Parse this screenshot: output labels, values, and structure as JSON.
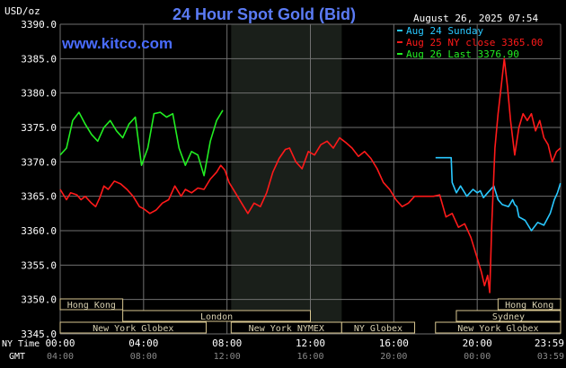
{
  "header": {
    "title": "24 Hour Spot Gold (Bid)",
    "unit": "USD/oz",
    "datetime": "August 26, 2025 07:54",
    "site": "www.kitco.com"
  },
  "colors": {
    "background": "#000000",
    "grid": "#707070",
    "title": "#5b7bf5",
    "sunday": "#29c8ff",
    "ny_close": "#ff1a1a",
    "last": "#22ee22",
    "session_fill": "#000000",
    "session_border": "#d8c690",
    "session_text": "#d8d0b0",
    "nymex_shade": "#1a1f1a"
  },
  "legend": [
    {
      "label": "Aug 24 Sunday",
      "color": "#29c8ff"
    },
    {
      "label": "Aug 25 NY close 3365.00",
      "color": "#ff1a1a"
    },
    {
      "label": "Aug 26 Last 3376.90",
      "color": "#22ee22"
    }
  ],
  "chart_data": {
    "type": "line",
    "title": "24 Hour Spot Gold (Bid)",
    "ylabel": "USD/oz",
    "ylim": [
      3345.0,
      3390.0
    ],
    "y_ticks": [
      "3390.0",
      "3385.0",
      "3380.0",
      "3375.0",
      "3370.0",
      "3365.0",
      "3360.0",
      "3355.0",
      "3350.0",
      "3345.0"
    ],
    "x_range_hours": [
      0,
      24
    ],
    "x_ticks_ny": [
      "00:00",
      "04:00",
      "08:00",
      "12:00",
      "16:00",
      "20:00",
      "23:59"
    ],
    "x_ticks_gmt": [
      "04:00",
      "08:00",
      "12:00",
      "16:00",
      "20:00",
      "00:00",
      "03:59"
    ],
    "x_row_label_ny": "NY Time",
    "x_row_label_gmt": "GMT",
    "grid": true,
    "legend_position": "top-right",
    "series": [
      {
        "name": "Aug 24 Sunday",
        "color": "#29c8ff",
        "x": [
          18.0,
          18.75,
          18.8,
          19.0,
          19.2,
          19.5,
          19.8,
          20.0,
          20.15,
          20.3,
          20.5,
          20.8,
          21.0,
          21.2,
          21.5,
          21.7,
          21.8,
          21.9,
          22.0,
          22.3,
          22.6,
          22.9,
          23.2,
          23.5,
          23.7,
          23.85,
          23.99
        ],
        "y": [
          3370.6,
          3370.6,
          3367.0,
          3365.5,
          3366.5,
          3365.0,
          3366.0,
          3365.5,
          3365.8,
          3364.8,
          3365.5,
          3366.5,
          3364.5,
          3363.8,
          3363.5,
          3364.5,
          3363.8,
          3363.5,
          3362.0,
          3361.5,
          3360.0,
          3361.2,
          3360.8,
          3362.5,
          3364.5,
          3365.5,
          3366.9
        ]
      },
      {
        "name": "Aug 25 NY close 3365.00",
        "color": "#ff1a1a",
        "x": [
          0,
          0.3,
          0.5,
          0.8,
          1.0,
          1.2,
          1.5,
          1.7,
          1.9,
          2.1,
          2.3,
          2.6,
          2.9,
          3.2,
          3.5,
          3.8,
          4.0,
          4.3,
          4.6,
          4.9,
          5.2,
          5.5,
          5.8,
          6.0,
          6.3,
          6.6,
          6.9,
          7.2,
          7.5,
          7.7,
          7.9,
          8.1,
          8.4,
          8.7,
          9.0,
          9.3,
          9.6,
          9.9,
          10.2,
          10.5,
          10.8,
          11.0,
          11.3,
          11.6,
          11.9,
          12.2,
          12.5,
          12.8,
          13.1,
          13.4,
          13.7,
          14.0,
          14.3,
          14.6,
          14.9,
          15.2,
          15.5,
          15.8,
          16.1,
          16.4,
          16.7,
          17.0,
          17.3,
          17.6,
          17.9,
          18.2,
          18.5,
          18.8,
          19.1,
          19.4,
          19.7,
          20.0,
          20.2,
          20.35,
          20.5,
          20.6,
          20.7,
          20.85,
          21.0,
          21.15,
          21.3,
          21.45,
          21.6,
          21.8,
          22.0,
          22.2,
          22.4,
          22.6,
          22.8,
          23.0,
          23.2,
          23.4,
          23.6,
          23.8,
          23.99
        ],
        "y": [
          3366.0,
          3364.5,
          3365.5,
          3365.2,
          3364.5,
          3365.0,
          3364.0,
          3363.5,
          3364.8,
          3366.5,
          3366.0,
          3367.2,
          3366.8,
          3366.0,
          3365.0,
          3363.5,
          3363.2,
          3362.5,
          3363.0,
          3364.0,
          3364.5,
          3366.5,
          3365.0,
          3366.0,
          3365.5,
          3366.2,
          3366.0,
          3367.5,
          3368.5,
          3369.5,
          3368.8,
          3367.0,
          3365.5,
          3364.0,
          3362.5,
          3364.0,
          3363.5,
          3365.5,
          3368.5,
          3370.5,
          3371.8,
          3372.0,
          3370.0,
          3369.0,
          3371.5,
          3371.0,
          3372.5,
          3373.0,
          3372.0,
          3373.5,
          3372.8,
          3372.0,
          3370.8,
          3371.5,
          3370.5,
          3369.0,
          3367.0,
          3366.0,
          3364.5,
          3363.5,
          3364.0,
          3365.0,
          3365.0,
          3365.0,
          3365.0,
          3365.2,
          3362.0,
          3362.5,
          3360.5,
          3361.0,
          3359.0,
          3356.0,
          3354.0,
          3352.0,
          3353.5,
          3351.0,
          3361.0,
          3372.0,
          3377.0,
          3381.0,
          3385.0,
          3381.0,
          3376.0,
          3371.0,
          3375.0,
          3377.0,
          3376.0,
          3377.0,
          3374.5,
          3376.0,
          3373.5,
          3372.5,
          3370.0,
          3371.5,
          3372.0
        ]
      },
      {
        "name": "Aug 26 Last 3376.90",
        "color": "#22ee22",
        "x": [
          0,
          0.3,
          0.6,
          0.9,
          1.2,
          1.5,
          1.8,
          2.1,
          2.4,
          2.7,
          3.0,
          3.3,
          3.6,
          3.9,
          4.2,
          4.5,
          4.8,
          5.1,
          5.4,
          5.7,
          6.0,
          6.3,
          6.6,
          6.9,
          7.2,
          7.5,
          7.8
        ],
        "y": [
          3371.0,
          3372.0,
          3376.0,
          3377.2,
          3375.5,
          3374.0,
          3373.0,
          3375.0,
          3376.0,
          3374.5,
          3373.5,
          3375.5,
          3376.5,
          3369.5,
          3372.0,
          3377.0,
          3377.2,
          3376.5,
          3377.0,
          3372.0,
          3369.5,
          3371.5,
          3371.0,
          3368.0,
          3373.0,
          3376.0,
          3377.5
        ]
      }
    ],
    "sessions": [
      {
        "label": "Hong Kong",
        "start": 0.0,
        "end": 3.0,
        "row": 0
      },
      {
        "label": "London",
        "start": 3.0,
        "end": 12.0,
        "row": 1
      },
      {
        "label": "New York Globex",
        "start": 0.0,
        "end": 7.0,
        "row": 2
      },
      {
        "label": "New York NYMEX",
        "start": 8.2,
        "end": 13.5,
        "row": 2
      },
      {
        "label": "NY Globex",
        "start": 13.5,
        "end": 17.0,
        "row": 2
      },
      {
        "label": "Hong Kong",
        "start": 21.0,
        "end": 24.0,
        "row": 0
      },
      {
        "label": "Sydney",
        "start": 19.0,
        "end": 24.0,
        "row": 1
      },
      {
        "label": "New York Globex",
        "start": 18.0,
        "end": 24.0,
        "row": 2
      }
    ],
    "nymex_shade_hours": [
      8.2,
      13.5
    ]
  }
}
